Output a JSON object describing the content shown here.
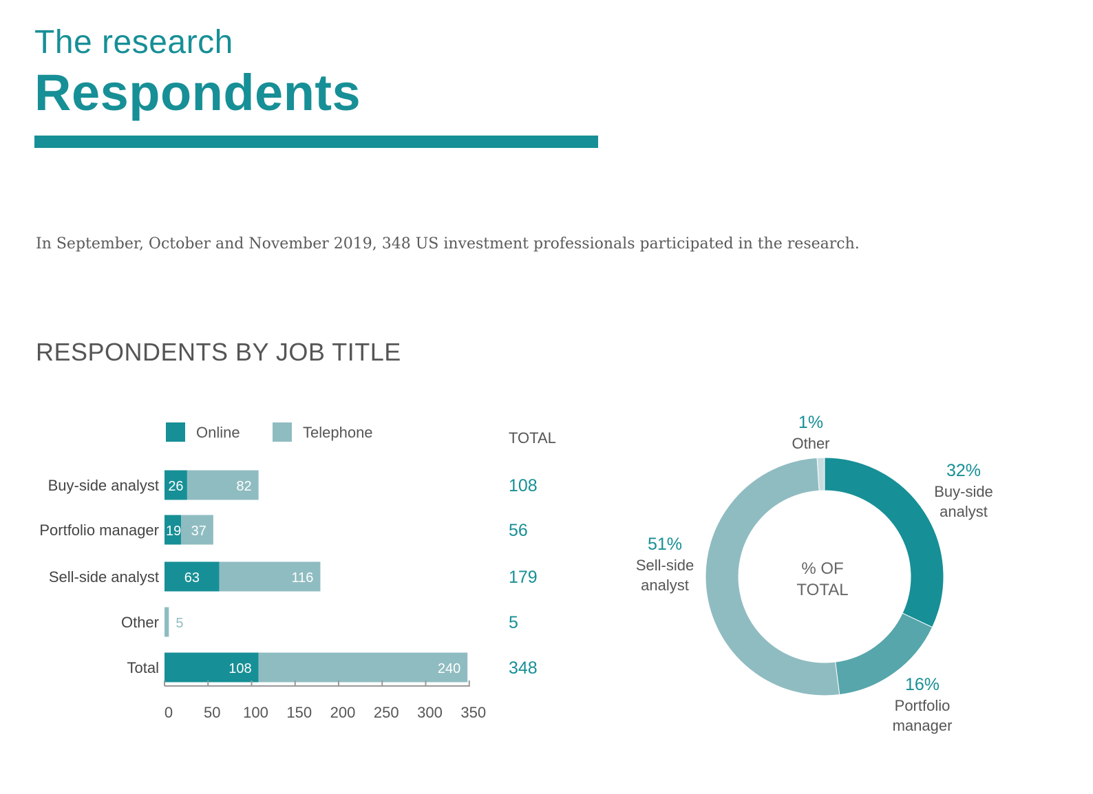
{
  "header": {
    "kicker": "The research",
    "title": "Respondents",
    "intro": "In September, October and November 2019, 348 US investment professionals participated in the research."
  },
  "section_title": "RESPONDENTS BY JOB TITLE",
  "colors": {
    "online": "#178f96",
    "telephone": "#8fbcc1",
    "portfolio": "#56a6ab",
    "other": "#c9dde0",
    "total_text": "#178f96"
  },
  "chart_data": [
    {
      "type": "bar",
      "orientation": "horizontal",
      "stacked": true,
      "categories": [
        "Buy-side analyst",
        "Portfolio manager",
        "Sell-side analyst",
        "Other",
        "Total"
      ],
      "series": [
        {
          "name": "Online",
          "values": [
            26,
            19,
            63,
            0,
            108
          ]
        },
        {
          "name": "Telephone",
          "values": [
            82,
            37,
            116,
            5,
            240
          ]
        }
      ],
      "totals_header": "TOTAL",
      "totals": [
        "108",
        "56",
        "179",
        "5",
        "348"
      ],
      "xticks": [
        "0",
        "50",
        "100",
        "150",
        "200",
        "250",
        "300",
        "350"
      ],
      "xlim": [
        0,
        350
      ],
      "legend": "top"
    },
    {
      "type": "pie",
      "donut": true,
      "center_label": [
        "% OF",
        "TOTAL"
      ],
      "slices": [
        {
          "label": [
            "Buy-side",
            "analyst"
          ],
          "pct_label": "32%",
          "value": 32
        },
        {
          "label": [
            "Portfolio",
            "manager"
          ],
          "pct_label": "16%",
          "value": 16
        },
        {
          "label": [
            "Sell-side",
            "analyst"
          ],
          "pct_label": "51%",
          "value": 51
        },
        {
          "label": [
            "Other"
          ],
          "pct_label": "1%",
          "value": 1
        }
      ]
    }
  ]
}
